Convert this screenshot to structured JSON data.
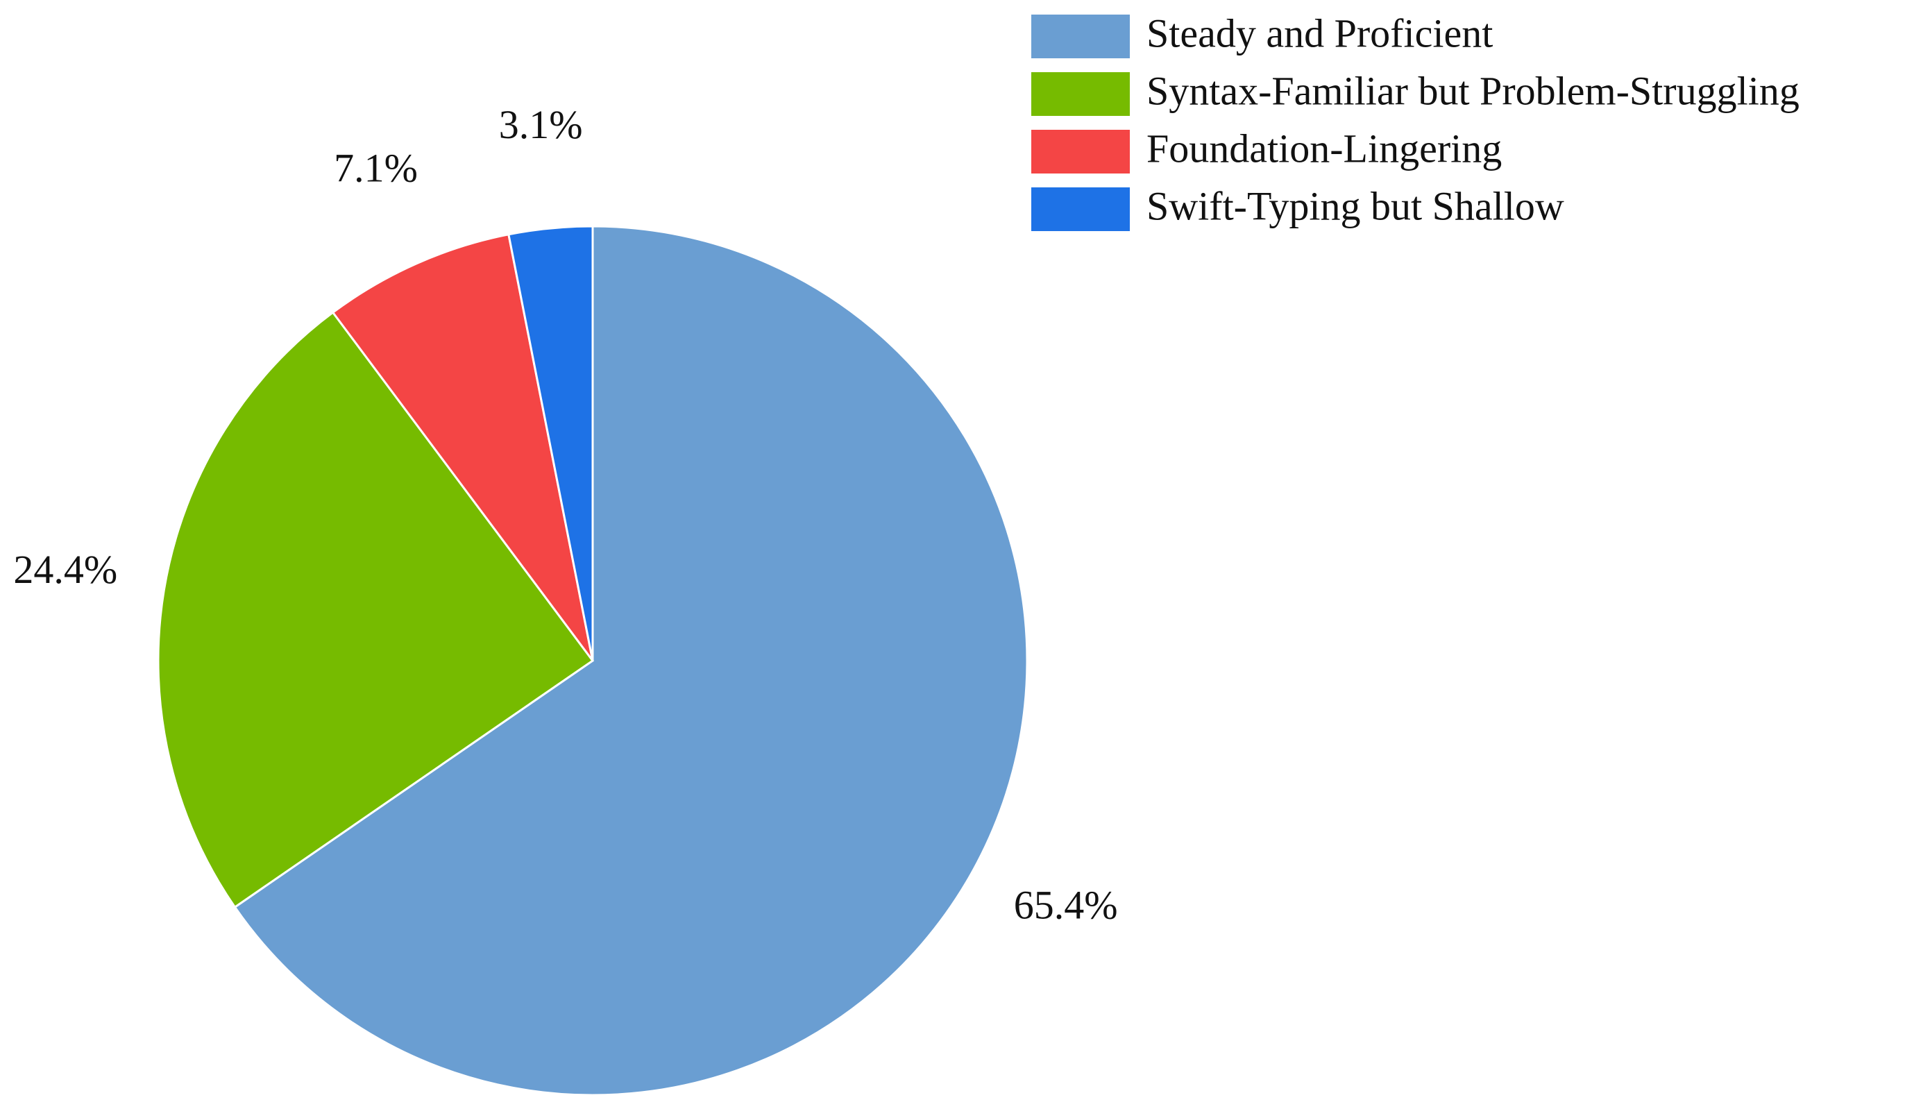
{
  "chart_data": {
    "type": "pie",
    "categories": [
      "Steady and Proficient",
      "Syntax-Familiar but Problem-Struggling",
      "Foundation-Lingering",
      "Swift-Typing but Shallow"
    ],
    "values": [
      65.4,
      24.4,
      7.1,
      3.1
    ],
    "value_labels": [
      "65.4%",
      "24.4%",
      "7.1%",
      "3.1%"
    ],
    "colors": [
      "#6a9ed2",
      "#76bb00",
      "#f44545",
      "#1e72e6"
    ],
    "legend": "top-right"
  }
}
